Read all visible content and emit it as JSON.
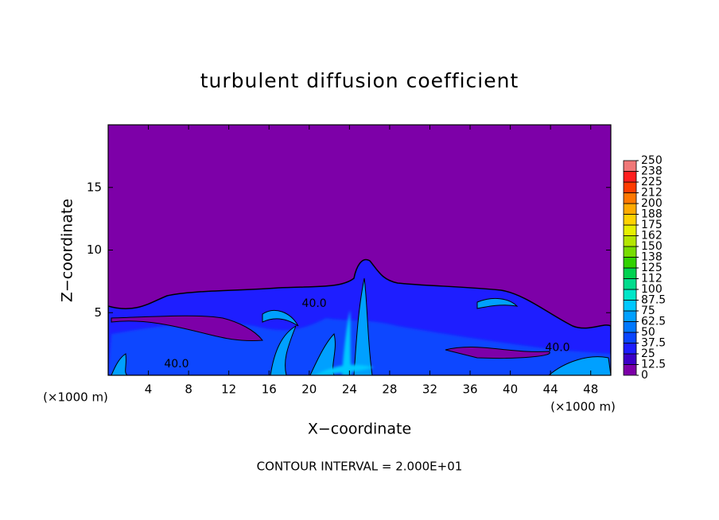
{
  "chart_data": {
    "type": "contour",
    "title": "turbulent diffusion coefficient",
    "xlabel": "X−coordinate",
    "ylabel": "Z−coordinate",
    "x_unit_label": "(×1000 m)",
    "y_unit_label": "(×1000 m)",
    "footer": "CONTOUR INTERVAL = 2.000E+01",
    "xlim": [
      0,
      50
    ],
    "ylim": [
      0,
      20
    ],
    "xticks": [
      4,
      8,
      12,
      16,
      20,
      24,
      28,
      32,
      36,
      40,
      44,
      48
    ],
    "yticks": [
      5,
      10,
      15
    ],
    "contour_labels": [
      {
        "text": "40.0",
        "x": 20.5,
        "z": 5.7
      },
      {
        "text": "40.0",
        "x": 6.8,
        "z": 0.9
      },
      {
        "text": "40.0",
        "x": 44.7,
        "z": 2.2
      }
    ],
    "colorbar": {
      "levels": [
        0,
        12.5,
        25,
        37.5,
        50,
        62.5,
        75,
        87.5,
        100,
        {
          "value": 112.5,
          "label": "112"
        },
        125,
        {
          "value": 137.5,
          "label": "138"
        },
        150,
        {
          "value": 162.5,
          "label": "162"
        },
        175,
        {
          "value": 187.5,
          "label": "188"
        },
        200,
        {
          "value": 212.5,
          "label": "212"
        },
        225,
        {
          "value": 237.5,
          "label": "238"
        },
        250
      ],
      "colors": [
        "#7d00a8",
        "#3c00c8",
        "#1e1eff",
        "#0a46ff",
        "#0078ff",
        "#00a0ff",
        "#00c8ff",
        "#00e6c8",
        "#00dc8c",
        "#00d250",
        "#32d200",
        "#78dc00",
        "#b4e600",
        "#e6f000",
        "#ffd200",
        "#ffaa00",
        "#ff7800",
        "#ff3c00",
        "#ff1e1e",
        "#f07878"
      ]
    }
  }
}
